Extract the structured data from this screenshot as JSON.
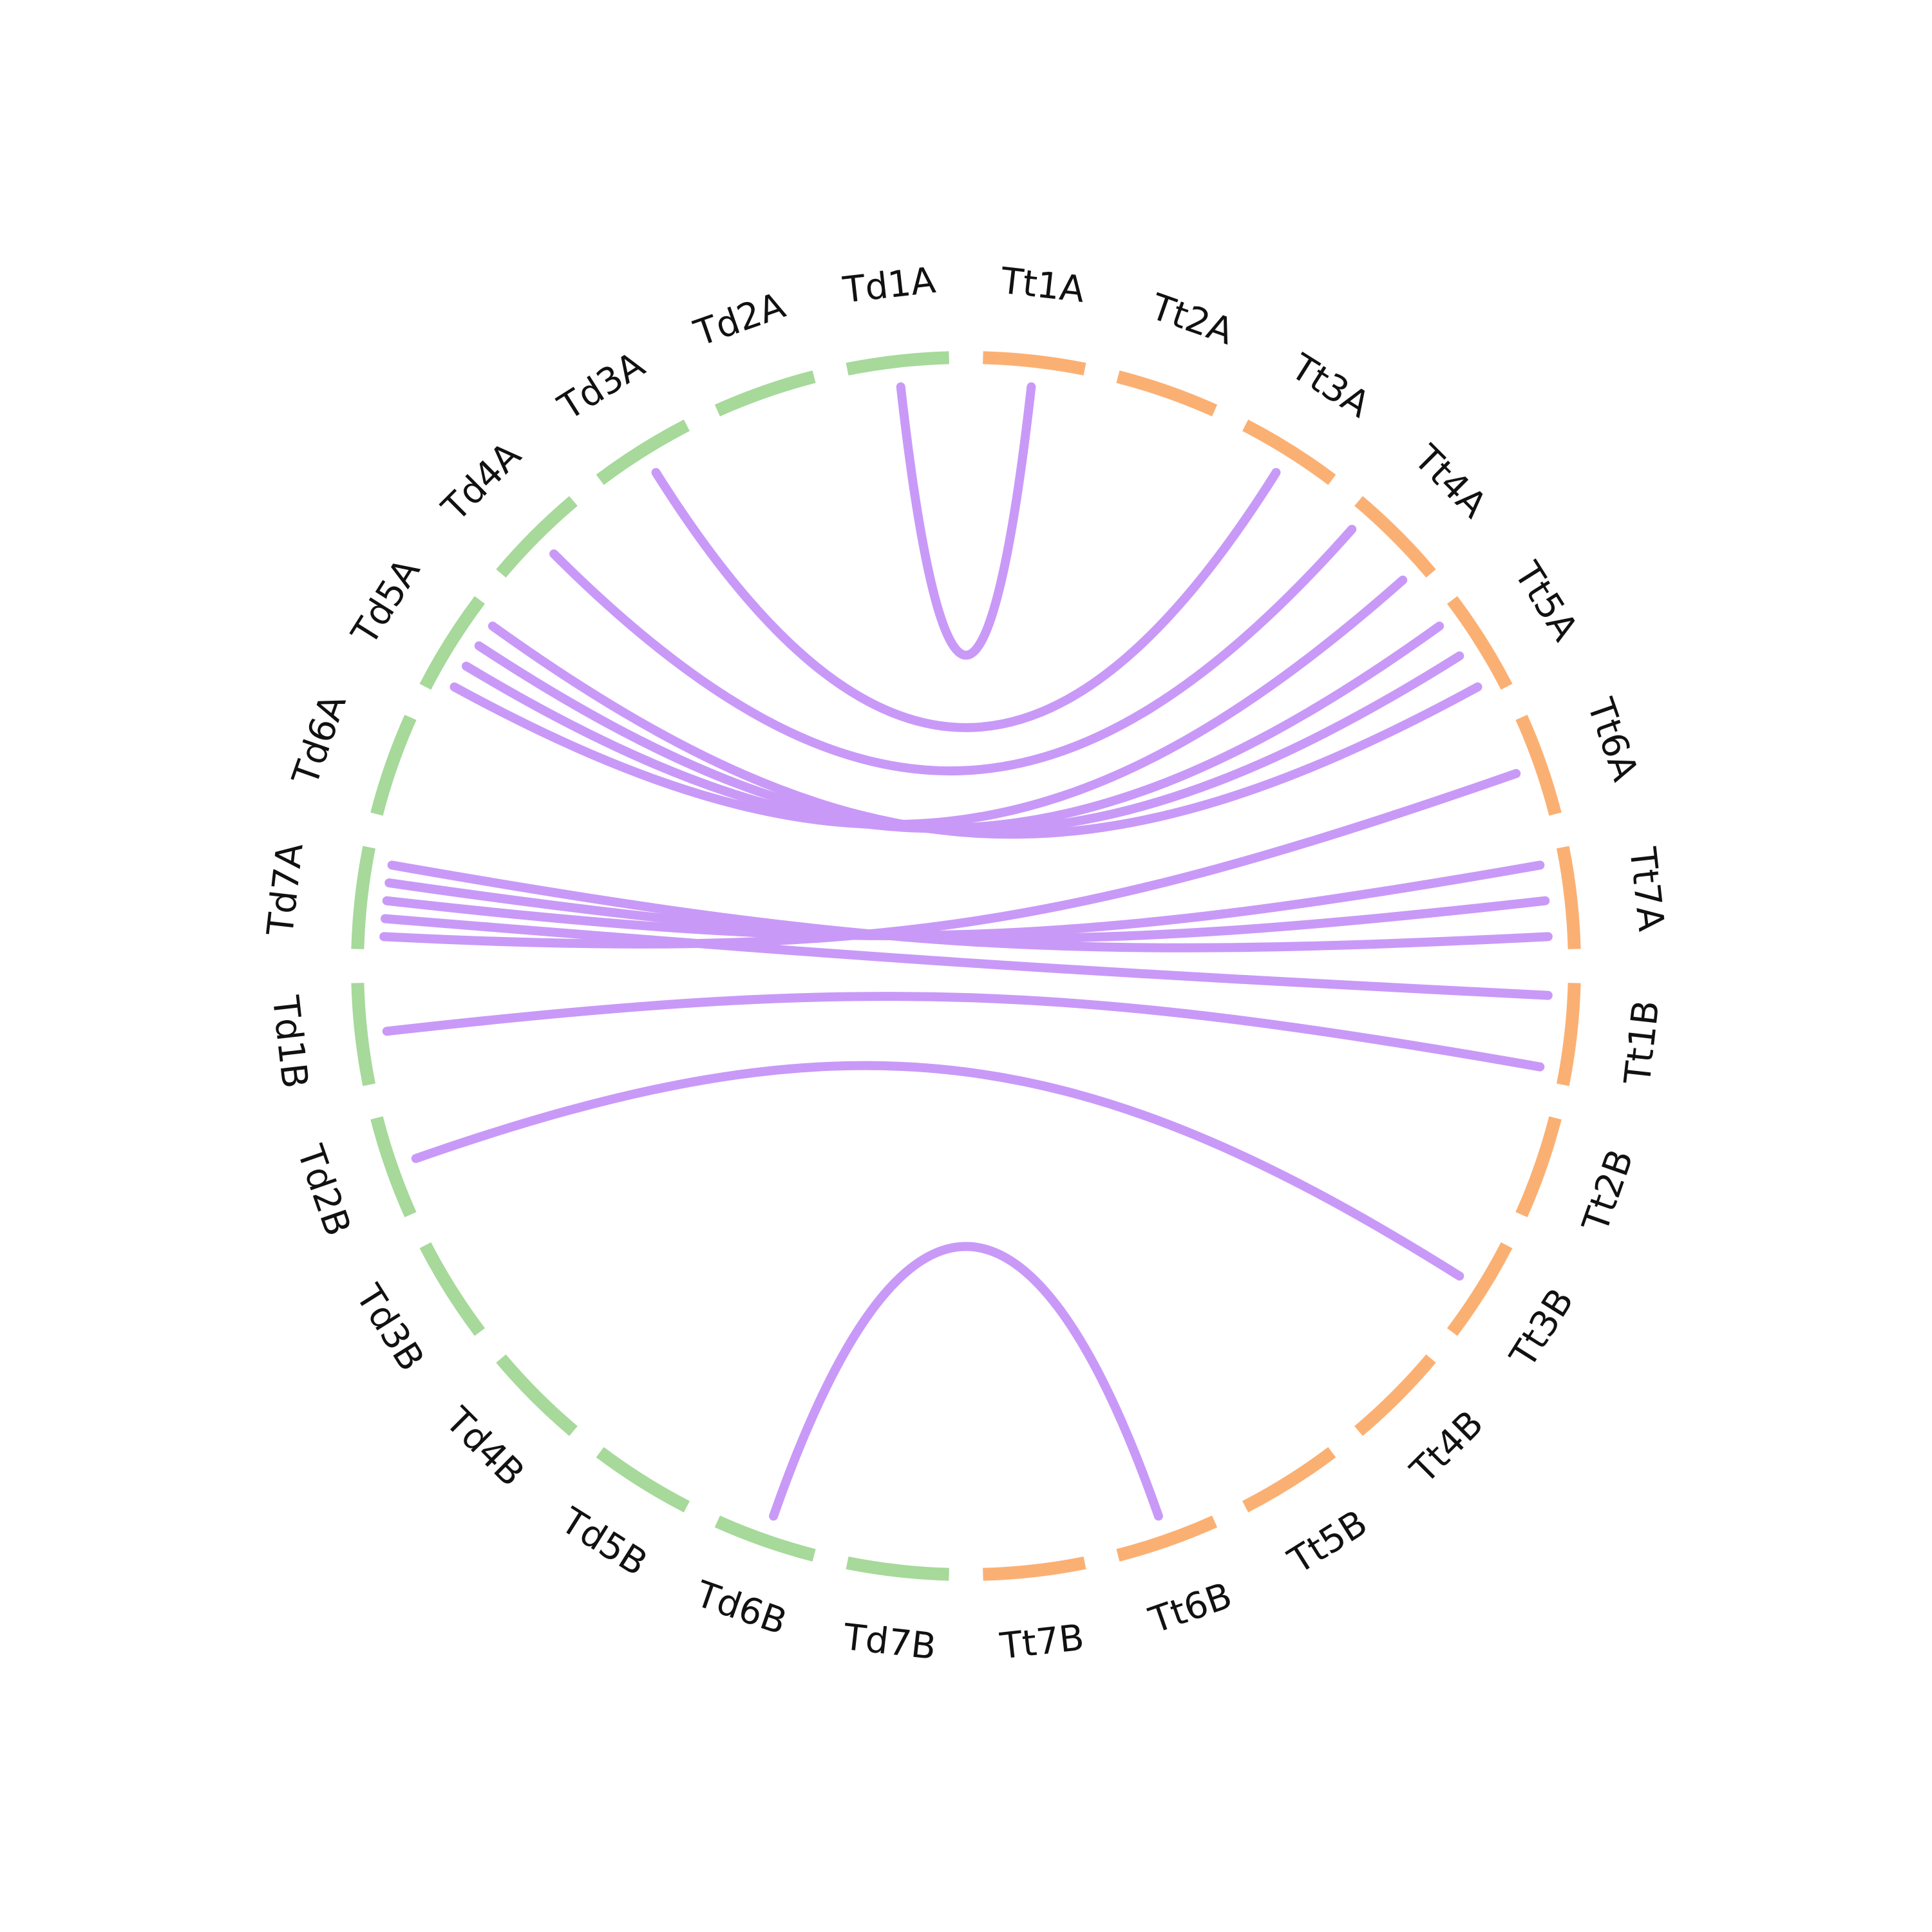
{
  "colors": {
    "Td": "#a6d99a",
    "Tt": "#fbb073",
    "link": "#c999f8",
    "label": "#111111"
  },
  "chromosomes": [
    {
      "id": "Td1A",
      "label": "Td1A",
      "group": "Td"
    },
    {
      "id": "Td2A",
      "label": "Td2A",
      "group": "Td"
    },
    {
      "id": "Td3A",
      "label": "Td3A",
      "group": "Td"
    },
    {
      "id": "Td4A",
      "label": "Td4A",
      "group": "Td"
    },
    {
      "id": "Td5A",
      "label": "Td5A",
      "group": "Td"
    },
    {
      "id": "Td6A",
      "label": "Td6A",
      "group": "Td"
    },
    {
      "id": "Td7A",
      "label": "Td7A",
      "group": "Td"
    },
    {
      "id": "Td1B",
      "label": "Td1B",
      "group": "Td"
    },
    {
      "id": "Td2B",
      "label": "Td2B",
      "group": "Td"
    },
    {
      "id": "Td3B",
      "label": "Td3B",
      "group": "Td"
    },
    {
      "id": "Td4B",
      "label": "Td4B",
      "group": "Td"
    },
    {
      "id": "Td5B",
      "label": "Td5B",
      "group": "Td"
    },
    {
      "id": "Td6B",
      "label": "Td6B",
      "group": "Td"
    },
    {
      "id": "Td7B",
      "label": "Td7B",
      "group": "Td"
    },
    {
      "id": "Tt7B",
      "label": "Tt7B",
      "group": "Tt"
    },
    {
      "id": "Tt6B",
      "label": "Tt6B",
      "group": "Tt"
    },
    {
      "id": "Tt5B",
      "label": "Tt5B",
      "group": "Tt"
    },
    {
      "id": "Tt4B",
      "label": "Tt4B",
      "group": "Tt"
    },
    {
      "id": "Tt3B",
      "label": "Tt3B",
      "group": "Tt"
    },
    {
      "id": "Tt2B",
      "label": "Tt2B",
      "group": "Tt"
    },
    {
      "id": "Tt1B",
      "label": "Tt1B",
      "group": "Tt"
    },
    {
      "id": "Tt7A",
      "label": "Tt7A",
      "group": "Tt"
    },
    {
      "id": "Tt6A",
      "label": "Tt6A",
      "group": "Tt"
    },
    {
      "id": "Tt5A",
      "label": "Tt5A",
      "group": "Tt"
    },
    {
      "id": "Tt4A",
      "label": "Tt4A",
      "group": "Tt"
    },
    {
      "id": "Tt3A",
      "label": "Tt3A",
      "group": "Tt"
    },
    {
      "id": "Tt2A",
      "label": "Tt2A",
      "group": "Tt"
    },
    {
      "id": "Tt1A",
      "label": "Tt1A",
      "group": "Tt"
    }
  ],
  "links": [
    {
      "from": "Td1A",
      "to": "Tt1A"
    },
    {
      "from": "Td3A",
      "to": "Tt3A"
    },
    {
      "from": "Td4A",
      "to": "Tt4A"
    },
    {
      "from": "Td5A",
      "to": "Tt4A"
    },
    {
      "from": "Td5A",
      "to": "Tt5A"
    },
    {
      "from": "Td5A",
      "to": "Tt5A"
    },
    {
      "from": "Td5A",
      "to": "Tt5A"
    },
    {
      "from": "Td7A",
      "to": "Tt6A"
    },
    {
      "from": "Td7A",
      "to": "Tt1B"
    },
    {
      "from": "Td7A",
      "to": "Tt7A"
    },
    {
      "from": "Td7A",
      "to": "Tt7A"
    },
    {
      "from": "Td7A",
      "to": "Tt7A"
    },
    {
      "from": "Td1B",
      "to": "Tt1B"
    },
    {
      "from": "Td2B",
      "to": "Tt3B"
    },
    {
      "from": "Td6B",
      "to": "Tt6B"
    }
  ]
}
